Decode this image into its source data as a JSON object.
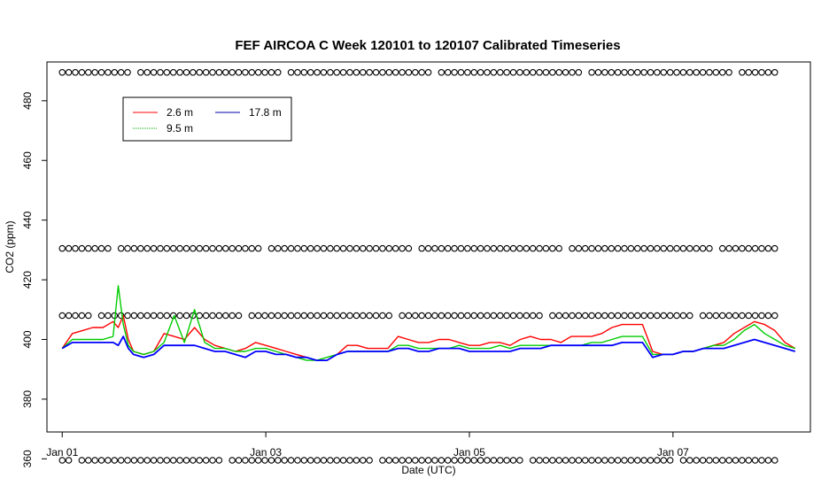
{
  "chart_data": {
    "type": "line",
    "title": "FEF AIRCOA C  Week 120101 to 120107  Calibrated Timeseries",
    "xlabel": "Date (UTC)",
    "ylabel": "CO2 (ppm)",
    "xlim": [
      -0.15,
      7.35
    ],
    "ylim": [
      369,
      493
    ],
    "x_ticks": [
      {
        "value": 0,
        "label": "Jan 01"
      },
      {
        "value": 2,
        "label": "Jan 03"
      },
      {
        "value": 4,
        "label": "Jan 05"
      },
      {
        "value": 6,
        "label": "Jan 07"
      }
    ],
    "y_ticks": [
      {
        "value": 360,
        "label": "360"
      },
      {
        "value": 380,
        "label": "380"
      },
      {
        "value": 400,
        "label": "400"
      },
      {
        "value": 420,
        "label": "420"
      },
      {
        "value": 440,
        "label": "440"
      },
      {
        "value": 460,
        "label": "460"
      },
      {
        "value": 480,
        "label": "480"
      }
    ],
    "legend_position": "top-left",
    "series": [
      {
        "name": "2.6 m",
        "color": "#ff0000",
        "x": [
          0.0,
          0.1,
          0.2,
          0.3,
          0.4,
          0.5,
          0.55,
          0.6,
          0.65,
          0.7,
          0.8,
          0.9,
          1.0,
          1.1,
          1.2,
          1.3,
          1.4,
          1.5,
          1.6,
          1.7,
          1.8,
          1.9,
          2.0,
          2.1,
          2.2,
          2.3,
          2.4,
          2.5,
          2.6,
          2.7,
          2.8,
          2.9,
          3.0,
          3.1,
          3.2,
          3.3,
          3.4,
          3.5,
          3.6,
          3.7,
          3.8,
          3.9,
          4.0,
          4.1,
          4.2,
          4.3,
          4.4,
          4.5,
          4.6,
          4.7,
          4.8,
          4.9,
          5.0,
          5.1,
          5.2,
          5.3,
          5.4,
          5.5,
          5.6,
          5.7,
          5.8,
          5.9,
          6.0,
          6.1,
          6.2,
          6.3,
          6.4,
          6.5,
          6.6,
          6.7,
          6.8,
          6.9,
          7.0,
          7.1,
          7.2
        ],
        "y": [
          397,
          402,
          403,
          404,
          404,
          406,
          404,
          408,
          400,
          396,
          395,
          396,
          402,
          401,
          400,
          404,
          400,
          398,
          397,
          396,
          397,
          399,
          398,
          397,
          396,
          395,
          394,
          393,
          393,
          395,
          398,
          398,
          397,
          397,
          397,
          401,
          400,
          399,
          399,
          400,
          400,
          399,
          398,
          398,
          399,
          399,
          398,
          400,
          401,
          400,
          400,
          399,
          401,
          401,
          401,
          402,
          404,
          405,
          405,
          405,
          396,
          395,
          395,
          396,
          396,
          397,
          398,
          399,
          402,
          404,
          406,
          405,
          403,
          399,
          397
        ]
      },
      {
        "name": "9.5 m",
        "color": "#00cc00",
        "x": [
          0.0,
          0.1,
          0.2,
          0.3,
          0.4,
          0.5,
          0.55,
          0.6,
          0.65,
          0.7,
          0.8,
          0.9,
          1.0,
          1.1,
          1.2,
          1.3,
          1.4,
          1.5,
          1.6,
          1.7,
          1.8,
          1.9,
          2.0,
          2.1,
          2.2,
          2.3,
          2.4,
          2.5,
          2.6,
          2.7,
          2.8,
          2.9,
          3.0,
          3.1,
          3.2,
          3.3,
          3.4,
          3.5,
          3.6,
          3.7,
          3.8,
          3.9,
          4.0,
          4.1,
          4.2,
          4.3,
          4.4,
          4.5,
          4.6,
          4.7,
          4.8,
          4.9,
          5.0,
          5.1,
          5.2,
          5.3,
          5.4,
          5.5,
          5.6,
          5.7,
          5.8,
          5.9,
          6.0,
          6.1,
          6.2,
          6.3,
          6.4,
          6.5,
          6.6,
          6.7,
          6.8,
          6.9,
          7.0,
          7.1,
          7.2
        ],
        "y": [
          397,
          400,
          400,
          400,
          400,
          401,
          418,
          405,
          398,
          396,
          395,
          396,
          399,
          408,
          399,
          410,
          399,
          397,
          397,
          396,
          396,
          397,
          397,
          396,
          395,
          394,
          393,
          393,
          394,
          395,
          396,
          396,
          396,
          396,
          396,
          398,
          398,
          397,
          397,
          397,
          397,
          398,
          397,
          397,
          397,
          398,
          397,
          398,
          398,
          398,
          398,
          398,
          398,
          398,
          399,
          399,
          400,
          401,
          401,
          401,
          395,
          395,
          395,
          396,
          396,
          397,
          398,
          398,
          400,
          403,
          405,
          402,
          400,
          398,
          397
        ]
      },
      {
        "name": "17.8 m",
        "color": "#0000ff",
        "x": [
          0.0,
          0.1,
          0.2,
          0.3,
          0.4,
          0.5,
          0.55,
          0.6,
          0.65,
          0.7,
          0.8,
          0.9,
          1.0,
          1.1,
          1.2,
          1.3,
          1.4,
          1.5,
          1.6,
          1.7,
          1.8,
          1.9,
          2.0,
          2.1,
          2.2,
          2.3,
          2.4,
          2.5,
          2.6,
          2.7,
          2.8,
          2.9,
          3.0,
          3.1,
          3.2,
          3.3,
          3.4,
          3.5,
          3.6,
          3.7,
          3.8,
          3.9,
          4.0,
          4.1,
          4.2,
          4.3,
          4.4,
          4.5,
          4.6,
          4.7,
          4.8,
          4.9,
          5.0,
          5.1,
          5.2,
          5.3,
          5.4,
          5.5,
          5.6,
          5.7,
          5.8,
          5.9,
          6.0,
          6.1,
          6.2,
          6.3,
          6.4,
          6.5,
          6.6,
          6.7,
          6.8,
          6.9,
          7.0,
          7.1,
          7.2
        ],
        "y": [
          397,
          399,
          399,
          399,
          399,
          399,
          398,
          401,
          397,
          395,
          394,
          395,
          398,
          398,
          398,
          398,
          397,
          396,
          396,
          395,
          394,
          396,
          396,
          395,
          395,
          394,
          394,
          393,
          393,
          395,
          396,
          396,
          396,
          396,
          396,
          397,
          397,
          396,
          396,
          397,
          397,
          397,
          396,
          396,
          396,
          396,
          396,
          397,
          397,
          397,
          398,
          398,
          398,
          398,
          398,
          398,
          398,
          399,
          399,
          399,
          394,
          395,
          395,
          396,
          396,
          397,
          397,
          397,
          398,
          399,
          400,
          399,
          398,
          397,
          396
        ]
      }
    ],
    "calibration_rows": [
      489.5,
      430.5,
      408,
      359.5
    ]
  }
}
